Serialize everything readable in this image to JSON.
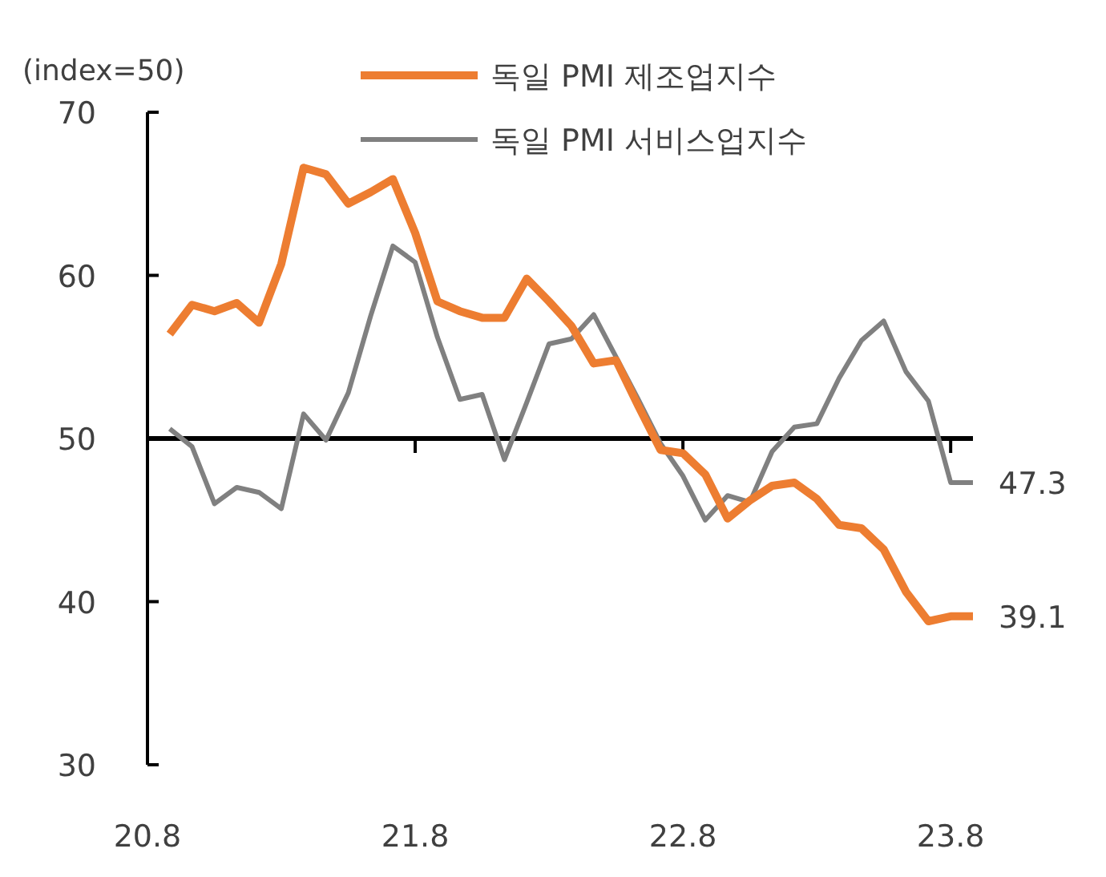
{
  "chart_data": {
    "type": "line",
    "ylabel": "(index=50)",
    "legend": "top",
    "marker": "none",
    "line_style": "solid",
    "grid": false,
    "categories": [
      "20.8",
      null,
      null,
      null,
      null,
      null,
      null,
      null,
      null,
      null,
      null,
      null,
      "21.8",
      null,
      null,
      null,
      null,
      null,
      null,
      null,
      null,
      null,
      null,
      null,
      "22.8",
      null,
      null,
      null,
      null,
      null,
      null,
      null,
      null,
      null,
      null,
      null,
      "23.8",
      null
    ],
    "series": [
      {
        "name": "독일 PMI 제조업지수",
        "color": "#ed7d31",
        "values": [
          null,
          56.4,
          58.2,
          57.8,
          58.3,
          57.1,
          60.7,
          66.6,
          66.2,
          64.4,
          65.1,
          65.9,
          62.6,
          58.4,
          57.8,
          57.4,
          57.4,
          59.8,
          58.4,
          56.9,
          54.6,
          54.8,
          52.0,
          49.3,
          49.1,
          47.8,
          45.1,
          46.2,
          47.1,
          47.3,
          46.3,
          44.7,
          44.5,
          43.2,
          40.6,
          38.8,
          39.1,
          39.1
        ]
      },
      {
        "name": "독일 PMI 서비스업지수",
        "color": "#808080",
        "values": [
          null,
          50.6,
          49.5,
          46.0,
          47.0,
          46.7,
          45.7,
          51.5,
          49.9,
          52.8,
          57.5,
          61.8,
          60.8,
          56.2,
          52.4,
          52.7,
          48.7,
          52.2,
          55.8,
          56.1,
          57.6,
          55.0,
          52.4,
          49.7,
          47.7,
          45.0,
          46.5,
          46.1,
          49.2,
          50.7,
          50.9,
          53.7,
          56.0,
          57.2,
          54.1,
          52.3,
          47.3,
          47.3
        ]
      }
    ],
    "ylim": [
      30,
      70
    ],
    "yticks": [
      30,
      40,
      50,
      60,
      70
    ],
    "ref_lines": [
      {
        "axis": "y",
        "value": 50,
        "color": "#000000"
      }
    ],
    "annotations": [
      "39.1",
      "47.3"
    ]
  }
}
